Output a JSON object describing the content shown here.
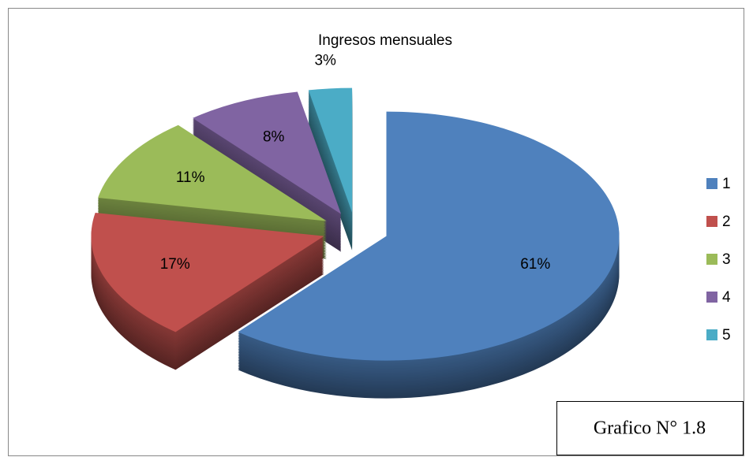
{
  "chart_data": {
    "type": "pie",
    "title": "Ingresos mensuales",
    "categories": [
      "1",
      "2",
      "3",
      "4",
      "5"
    ],
    "values": [
      61,
      17,
      11,
      8,
      3
    ],
    "value_labels": [
      "61%",
      "17%",
      "11%",
      "8%",
      "3%"
    ],
    "colors": [
      "#4f81bd",
      "#c0504d",
      "#9bbb59",
      "#8064a2",
      "#4bacc6"
    ],
    "legend": "right",
    "annotation": "Grafico N° 1.8"
  }
}
